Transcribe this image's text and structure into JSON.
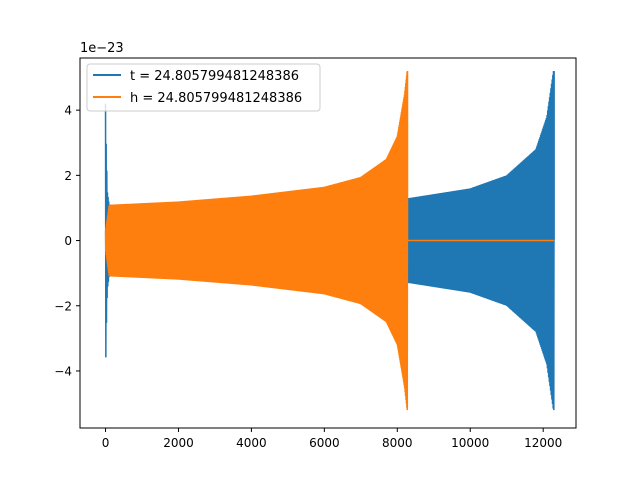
{
  "chart_data": {
    "type": "line",
    "title": "",
    "xlabel": "",
    "ylabel": "",
    "offset_text": "1e−23",
    "xlim": [
      -700,
      12900
    ],
    "ylim": [
      -5.75,
      5.6
    ],
    "xticks": [
      0,
      2000,
      4000,
      6000,
      8000,
      10000,
      12000
    ],
    "xtick_labels": [
      "0",
      "2000",
      "4000",
      "6000",
      "8000",
      "10000",
      "12000"
    ],
    "yticks": [
      -4,
      -2,
      0,
      2,
      4
    ],
    "ytick_labels": [
      "−4",
      "−2",
      "0",
      "2",
      "4"
    ],
    "grid": false,
    "legend_position": "upper-left",
    "series": [
      {
        "name": "t = 24.805799481248386",
        "color": "#1f77b4",
        "envelope_points": [
          {
            "x": 0,
            "y": 4.2
          },
          {
            "x": 20,
            "y": 2.8
          },
          {
            "x": 50,
            "y": 1.5
          },
          {
            "x": 100,
            "y": 1.1
          },
          {
            "x": 2000,
            "y": 1.12
          },
          {
            "x": 4000,
            "y": 1.2
          },
          {
            "x": 6000,
            "y": 1.35
          },
          {
            "x": 8000,
            "y": 1.6
          },
          {
            "x": 8300,
            "y": 1.3
          },
          {
            "x": 10000,
            "y": 1.6
          },
          {
            "x": 11000,
            "y": 2.0
          },
          {
            "x": 11800,
            "y": 2.8
          },
          {
            "x": 12100,
            "y": 3.8
          },
          {
            "x": 12280,
            "y": 5.2
          }
        ],
        "x_end": 12300
      },
      {
        "name": "h = 24.805799481248386",
        "color": "#ff7f0e",
        "envelope_points": [
          {
            "x": 0,
            "y": 0.3
          },
          {
            "x": 100,
            "y": 1.1
          },
          {
            "x": 2000,
            "y": 1.2
          },
          {
            "x": 4000,
            "y": 1.38
          },
          {
            "x": 6000,
            "y": 1.65
          },
          {
            "x": 7000,
            "y": 1.95
          },
          {
            "x": 7700,
            "y": 2.5
          },
          {
            "x": 8000,
            "y": 3.2
          },
          {
            "x": 8200,
            "y": 4.5
          },
          {
            "x": 8270,
            "y": 5.2
          }
        ],
        "x_end": 8280,
        "tail_value": 0.0,
        "tail_x_end": 12300
      }
    ]
  }
}
